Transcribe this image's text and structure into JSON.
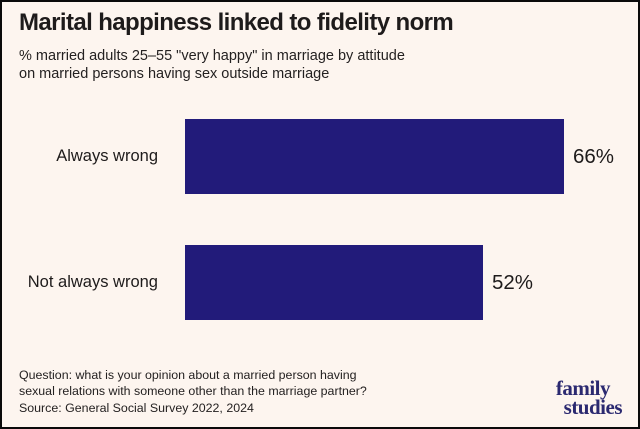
{
  "header": {
    "title": "Marital happiness linked to fidelity norm",
    "subtitle_line1": "% married adults 25–55 \"very happy\" in marriage by attitude",
    "subtitle_line2": "on married persons having sex outside marriage"
  },
  "chart_data": {
    "type": "bar",
    "orientation": "horizontal",
    "title": "Marital happiness linked to fidelity norm",
    "subtitle": "% married adults 25–55 \"very happy\" in marriage by attitude on married persons having sex outside marriage",
    "categories": [
      "Always wrong",
      "Not always wrong"
    ],
    "values": [
      66,
      52
    ],
    "value_labels": [
      "66%",
      "52%"
    ],
    "xlabel": "",
    "ylabel": "",
    "xlim": [
      0,
      100
    ],
    "grid": false,
    "legend": false,
    "bar_color": "#221b7a"
  },
  "footer": {
    "question_line1": "Question: what is your opinion about a married person having",
    "question_line2": "sexual relations with someone other than the marriage partner?",
    "source_line": "Source: General Social Survey 2022, 2024",
    "logo_line1": "family",
    "logo_line2": "studies"
  },
  "colors": {
    "background": "#fdf5ef",
    "border": "#0a0a0a",
    "bar": "#221b7a",
    "logo": "#2b2970",
    "text": "#1e1b1b"
  }
}
